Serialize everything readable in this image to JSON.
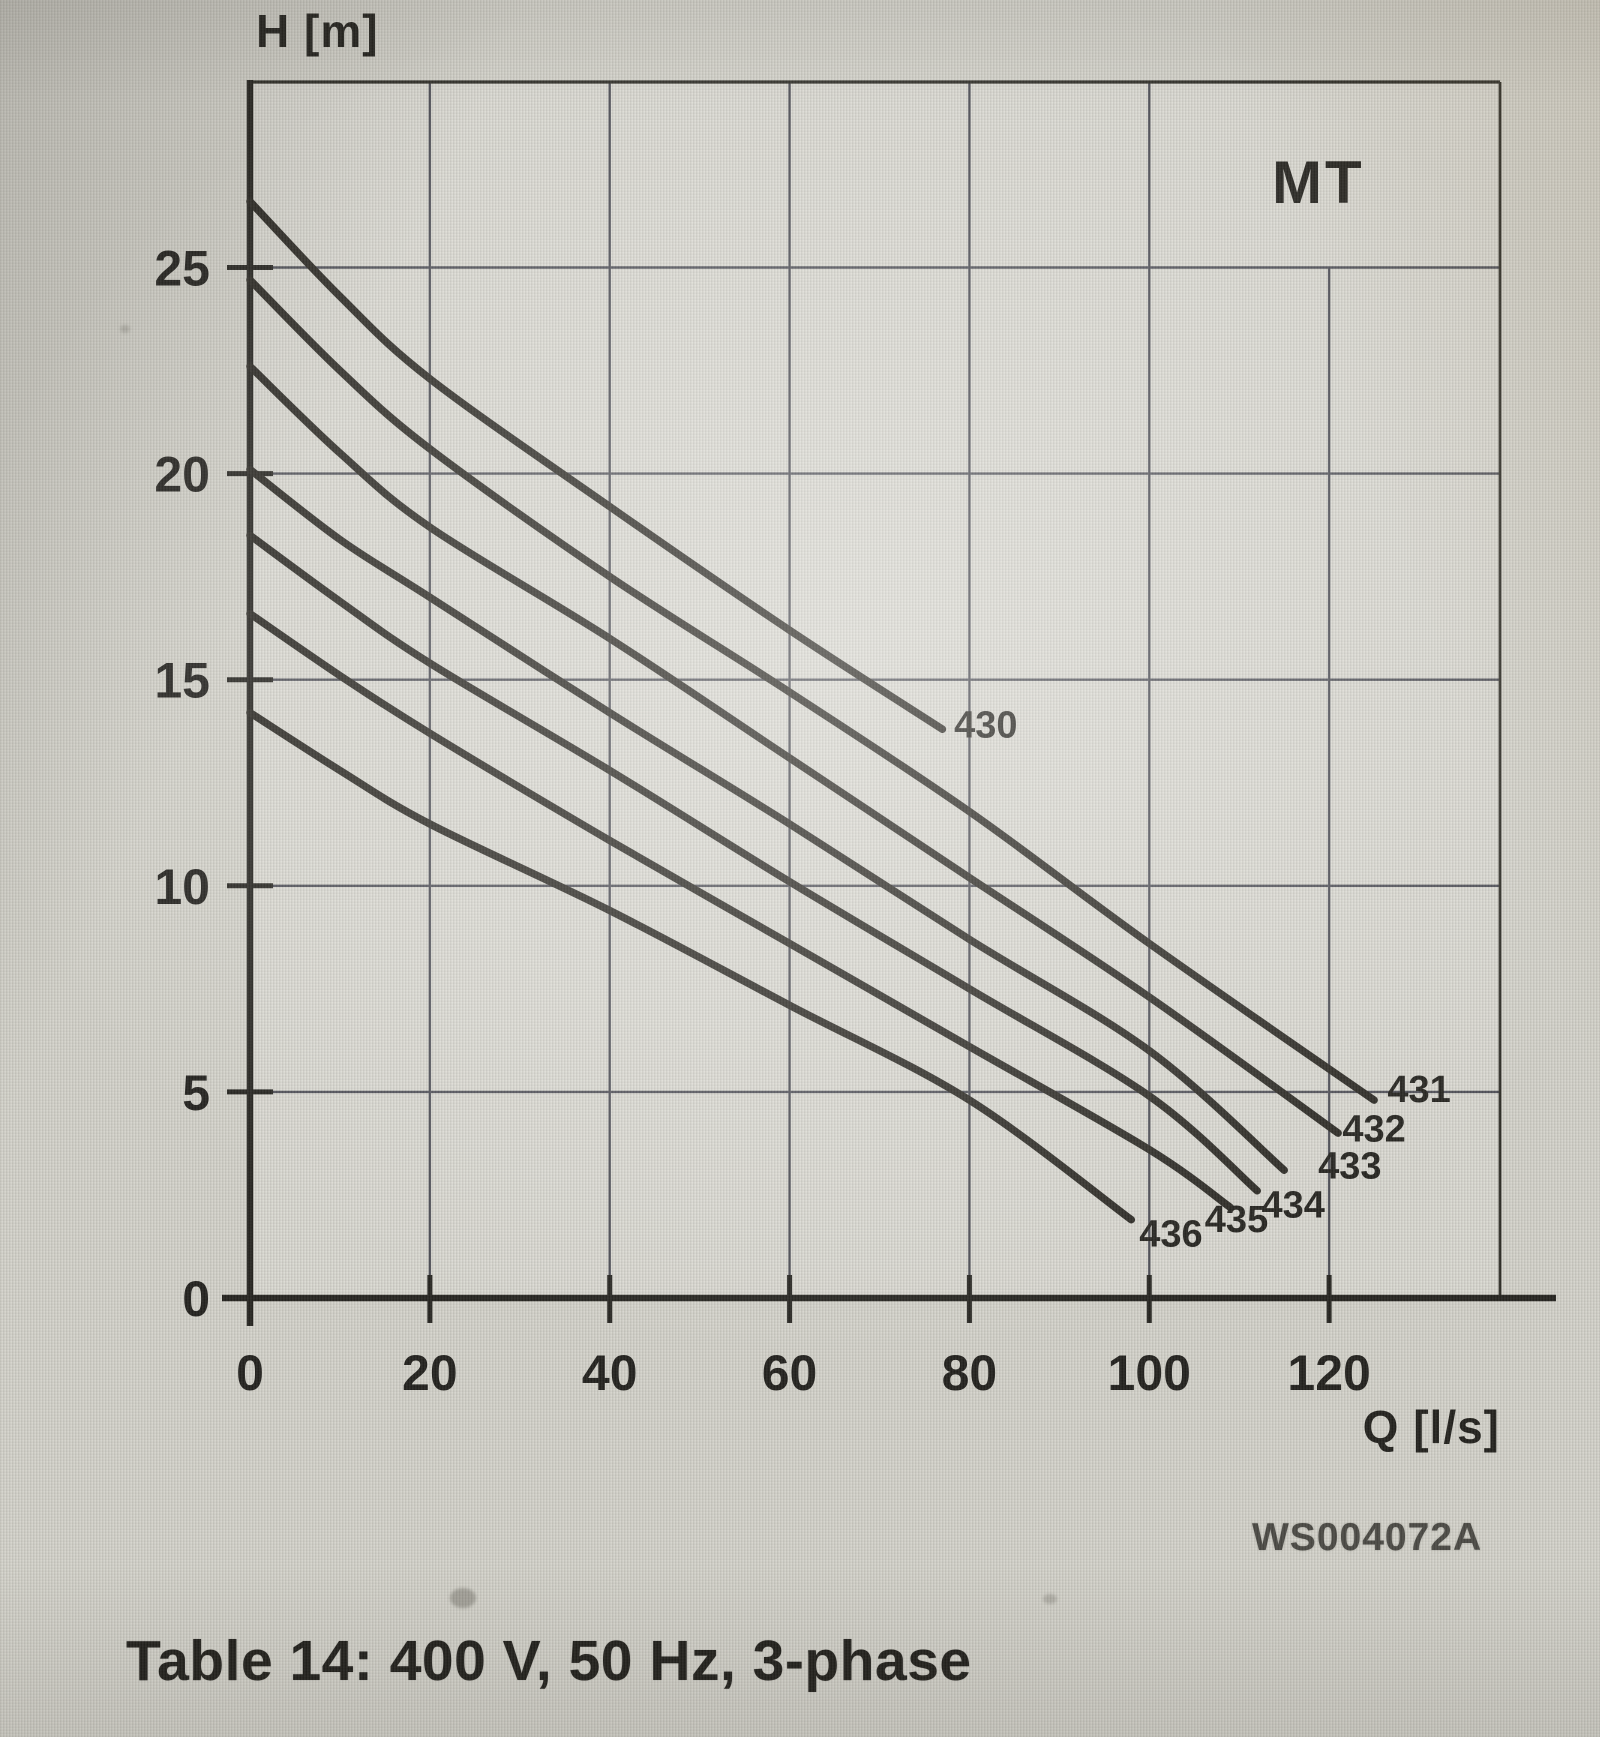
{
  "page": {
    "caption": "Table 14: 400 V, 50 Hz, 3-phase",
    "watermark": "WS004072A"
  },
  "chart_data": {
    "type": "line",
    "title": "MT",
    "xlabel": "Q [l/s]",
    "ylabel": "H [m]",
    "xlim": [
      0,
      139
    ],
    "ylim": [
      0,
      29.5
    ],
    "xticks": [
      0,
      20,
      40,
      60,
      80,
      100,
      120
    ],
    "yticks": [
      0,
      5,
      10,
      15,
      20,
      25
    ],
    "grid": true,
    "xgrid_partial": {
      "at": 120,
      "top_h": 25
    },
    "legend_position": "none",
    "line_color": "#24221d",
    "grid_color": "#4b4c55",
    "axis_color": "#1e1d19",
    "series": [
      {
        "name": "430",
        "points": [
          [
            0,
            26.6
          ],
          [
            10,
            24.3
          ],
          [
            20,
            22.3
          ],
          [
            40,
            19.2
          ],
          [
            60,
            16.2
          ],
          [
            77,
            13.8
          ]
        ],
        "label_pos": [
          78.3,
          13.6
        ],
        "label_anchor": "start"
      },
      {
        "name": "431",
        "points": [
          [
            0,
            24.7
          ],
          [
            10,
            22.5
          ],
          [
            20,
            20.6
          ],
          [
            40,
            17.5
          ],
          [
            60,
            14.7
          ],
          [
            80,
            11.8
          ],
          [
            100,
            8.6
          ],
          [
            125,
            4.8
          ]
        ],
        "label_pos": [
          130,
          4.75
        ],
        "label_anchor": "middle"
      },
      {
        "name": "432",
        "points": [
          [
            0,
            22.6
          ],
          [
            10,
            20.5
          ],
          [
            20,
            18.7
          ],
          [
            40,
            16.0
          ],
          [
            60,
            13.1
          ],
          [
            80,
            10.2
          ],
          [
            100,
            7.3
          ],
          [
            121,
            4.0
          ]
        ],
        "label_pos": [
          125,
          3.8
        ],
        "label_anchor": "middle"
      },
      {
        "name": "433",
        "points": [
          [
            0,
            20.1
          ],
          [
            10,
            18.4
          ],
          [
            20,
            17.0
          ],
          [
            40,
            14.2
          ],
          [
            60,
            11.5
          ],
          [
            80,
            8.7
          ],
          [
            100,
            6.0
          ],
          [
            115,
            3.1
          ]
        ],
        "label_pos": [
          122.3,
          2.9
        ],
        "label_anchor": "middle"
      },
      {
        "name": "434",
        "points": [
          [
            0,
            18.5
          ],
          [
            10,
            16.9
          ],
          [
            20,
            15.4
          ],
          [
            40,
            12.8
          ],
          [
            60,
            10.1
          ],
          [
            80,
            7.5
          ],
          [
            100,
            4.9
          ],
          [
            112,
            2.6
          ]
        ],
        "label_pos": [
          116,
          1.95
        ],
        "label_anchor": "middle"
      },
      {
        "name": "435",
        "points": [
          [
            0,
            16.6
          ],
          [
            10,
            15.1
          ],
          [
            20,
            13.7
          ],
          [
            40,
            11.1
          ],
          [
            60,
            8.6
          ],
          [
            80,
            6.1
          ],
          [
            100,
            3.6
          ],
          [
            109,
            2.2
          ]
        ],
        "label_pos": [
          109.7,
          1.6
        ],
        "label_anchor": "middle"
      },
      {
        "name": "436",
        "points": [
          [
            0,
            14.2
          ],
          [
            10,
            12.8
          ],
          [
            20,
            11.5
          ],
          [
            40,
            9.4
          ],
          [
            60,
            7.1
          ],
          [
            80,
            4.8
          ],
          [
            98,
            1.9
          ]
        ],
        "label_pos": [
          102.4,
          1.25
        ],
        "label_anchor": "middle"
      }
    ]
  }
}
